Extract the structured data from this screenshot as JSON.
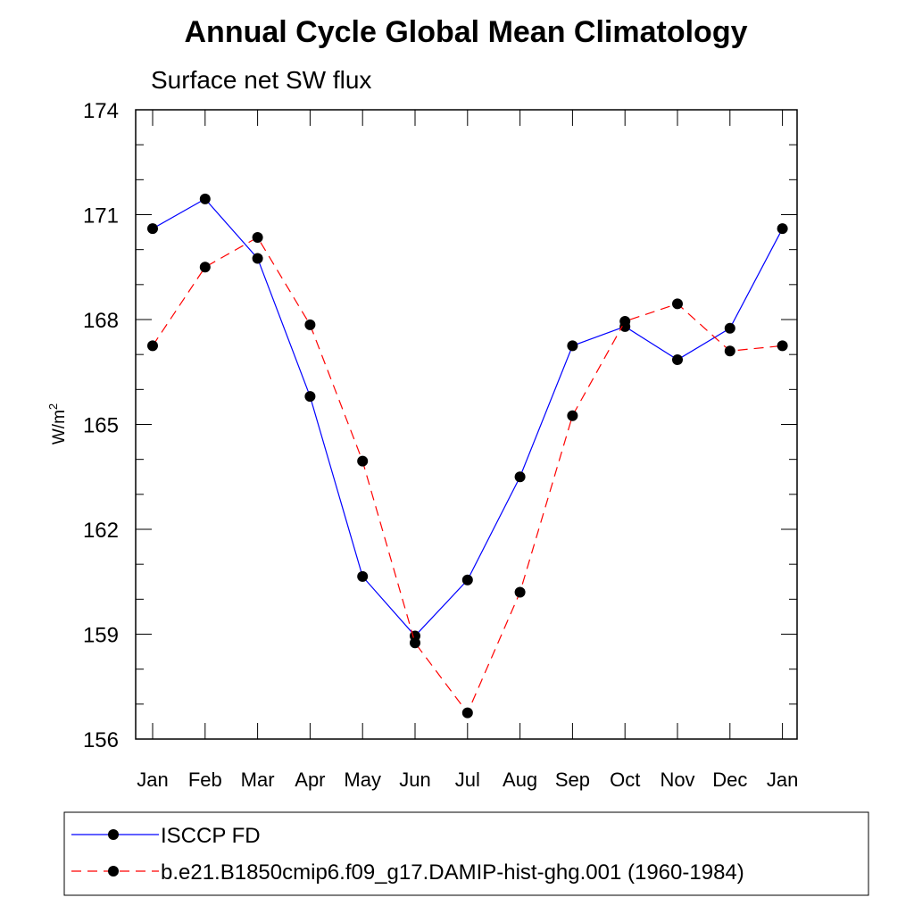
{
  "chart_data": {
    "type": "line",
    "title": "Annual Cycle Global Mean Climatology",
    "subtitle": "Surface net SW flux",
    "ylabel": "W/m",
    "ylabel_superscript": "2",
    "ylim": [
      156,
      174
    ],
    "yticks": [
      "156",
      "159",
      "162",
      "165",
      "168",
      "171",
      "174"
    ],
    "categories": [
      "Jan",
      "Feb",
      "Mar",
      "Apr",
      "May",
      "Jun",
      "Jul",
      "Aug",
      "Sep",
      "Oct",
      "Nov",
      "Dec",
      "Jan"
    ],
    "grid": false,
    "legend_position": "bottom",
    "series": [
      {
        "name": "ISCCP FD",
        "color": "#0000ff",
        "line_style": "solid",
        "marker": "filled-circle",
        "values": [
          170.6,
          171.45,
          169.75,
          165.8,
          160.65,
          158.95,
          160.55,
          163.5,
          167.25,
          167.8,
          166.85,
          167.75,
          170.6
        ]
      },
      {
        "name": "b.e21.B1850cmip6.f09_g17.DAMIP-hist-ghg.001 (1960-1984)",
        "color": "#ff0000",
        "line_style": "dashed",
        "marker": "filled-circle",
        "values": [
          167.25,
          169.5,
          170.35,
          167.85,
          163.95,
          158.75,
          156.75,
          160.2,
          165.25,
          167.95,
          168.45,
          167.1,
          167.25
        ]
      }
    ]
  }
}
